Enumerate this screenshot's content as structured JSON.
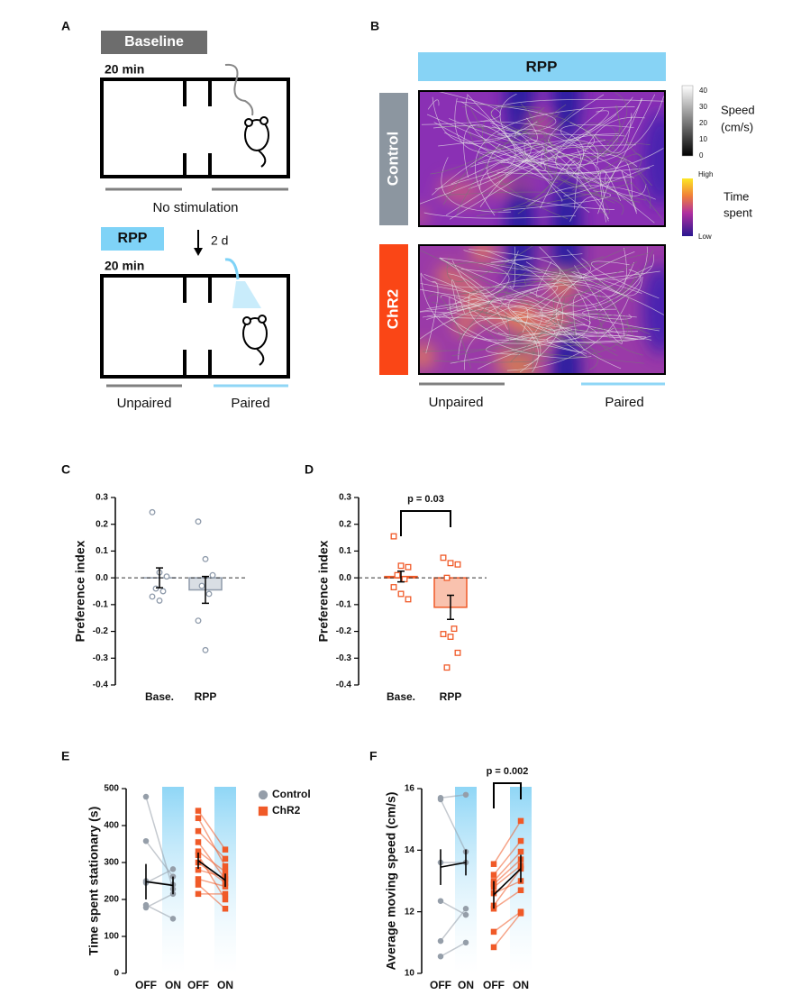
{
  "diagram": {
    "A": {
      "label": "A",
      "baseline": "Baseline",
      "duration1": "20 min",
      "no_stim": "No stimulation",
      "rpp": "RPP",
      "interval": "2 d",
      "duration2": "20 min",
      "unpaired": "Unpaired",
      "paired": "Paired"
    },
    "B": {
      "label": "B",
      "rpp": "RPP",
      "control": "Control",
      "chr2": "ChR2",
      "unpaired": "Unpaired",
      "paired": "Paired",
      "speed_label": [
        "Speed",
        "(cm/s)"
      ],
      "speed_ticks": [
        40,
        30,
        20,
        10,
        0
      ],
      "time_high": "High",
      "time_low": "Low",
      "time_label": [
        "Time",
        "spent"
      ]
    }
  },
  "chart_data": [
    {
      "type": "bar",
      "label": "C",
      "ylabel": "Preference index",
      "categories": [
        "Base.",
        "RPP"
      ],
      "values": [
        0.0,
        -0.045
      ],
      "errors": [
        0.037,
        0.05
      ],
      "points": [
        [
          0.245,
          0.02,
          0.005,
          -0.04,
          -0.05,
          -0.07,
          -0.085
        ],
        [
          0.21,
          0.07,
          0.01,
          -0.03,
          -0.06,
          -0.16,
          -0.27
        ]
      ],
      "color": "#8f9bab",
      "fill": "#d9dee4",
      "marker": "circle",
      "ylim": [
        -0.4,
        0.3
      ],
      "yticks": [
        0.3,
        0.2,
        0.1,
        {
          "value": 0,
          "label": "0.0"
        },
        -0.1,
        -0.2,
        -0.3,
        -0.4
      ]
    },
    {
      "type": "bar",
      "label": "D",
      "ylabel": "Preference index",
      "categories": [
        "Base.",
        "RPP"
      ],
      "values": [
        0.005,
        -0.11
      ],
      "errors": [
        0.02,
        0.045
      ],
      "points": [
        [
          0.155,
          0.045,
          0.04,
          0.01,
          -0.005,
          -0.035,
          -0.06,
          -0.08
        ],
        [
          0.075,
          0.055,
          0.05,
          0.0,
          -0.19,
          -0.21,
          -0.22,
          -0.28,
          -0.335
        ]
      ],
      "color": "#f05a28",
      "fill": "#f9c2ae",
      "marker": "square",
      "annotation": "p = 0.03",
      "ylim": [
        -0.4,
        0.3
      ],
      "yticks": [
        0.3,
        0.2,
        0.1,
        {
          "value": 0,
          "label": "0.0"
        },
        -0.1,
        -0.2,
        -0.3,
        -0.4
      ]
    },
    {
      "type": "paired",
      "label": "E",
      "ylabel": "Time spent stationary (s)",
      "categories": [
        "OFF",
        "ON",
        "OFF",
        "ON"
      ],
      "legend": true,
      "series": [
        {
          "name": "Control",
          "color": "#959ea9",
          "marker": "circle",
          "off": [
            478,
            358,
            250,
            245,
            185,
            178
          ],
          "on": [
            228,
            262,
            240,
            282,
            148,
            215
          ],
          "mean": [
            248,
            238
          ],
          "error": [
            48,
            24
          ]
        },
        {
          "name": "ChR2",
          "color": "#f05a28",
          "marker": "square",
          "off": [
            440,
            420,
            385,
            355,
            330,
            320,
            300,
            280,
            255,
            240,
            215
          ],
          "on": [
            335,
            290,
            310,
            255,
            275,
            200,
            245,
            260,
            235,
            175,
            215
          ],
          "mean": [
            305,
            252
          ],
          "error": [
            22,
            18
          ]
        }
      ],
      "ylim": [
        0,
        500
      ],
      "yticks": [
        0,
        100,
        200,
        300,
        400,
        500
      ]
    },
    {
      "type": "paired",
      "label": "F",
      "ylabel": "Average moving speed (cm/s)",
      "categories": [
        "OFF",
        "ON",
        "OFF",
        "ON"
      ],
      "legend": false,
      "annotation": "p = 0.002",
      "series": [
        {
          "color": "#959ea9",
          "marker": "circle",
          "off": [
            15.7,
            15.65,
            13.6,
            12.35,
            11.05,
            10.55
          ],
          "on": [
            15.8,
            13.95,
            13.6,
            11.9,
            12.1,
            11.0
          ],
          "mean": [
            13.45,
            13.6
          ],
          "error": [
            0.58,
            0.42
          ]
        },
        {
          "color": "#f05a28",
          "marker": "square",
          "off": [
            13.55,
            13.2,
            13.0,
            12.9,
            12.8,
            12.6,
            12.2,
            12.1,
            11.35,
            10.85
          ],
          "on": [
            14.95,
            14.3,
            13.95,
            13.7,
            13.5,
            13.0,
            13.4,
            12.7,
            12.0,
            11.95
          ],
          "mean": [
            12.55,
            13.4
          ],
          "error": [
            0.45,
            0.45
          ]
        }
      ],
      "ylim": [
        10,
        16
      ],
      "yticks": [
        10,
        12,
        14,
        16
      ]
    }
  ]
}
